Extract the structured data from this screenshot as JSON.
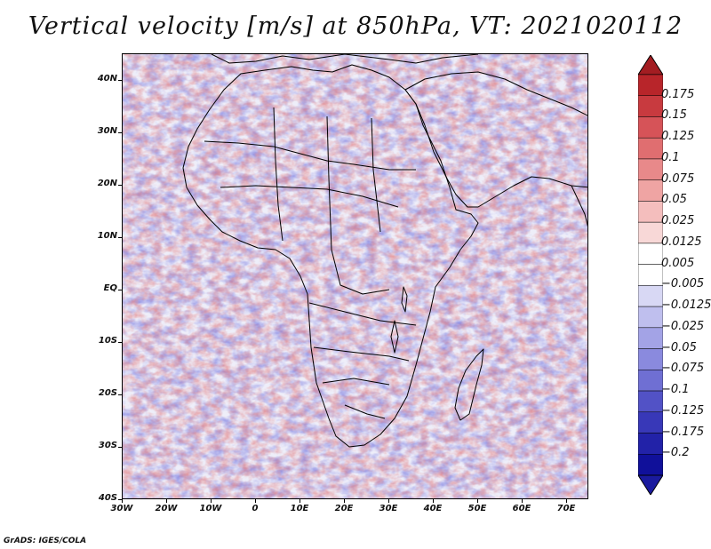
{
  "title": "Vertical velocity [m/s] at 850hPa, VT: 2021020112",
  "footer": "GrADS: IGES/COLA",
  "map": {
    "variable": "Vertical velocity",
    "units": "m/s",
    "level": "850hPa",
    "valid_time": "2021020112",
    "lon_range": [
      -30,
      75
    ],
    "lat_range": [
      -40,
      45
    ],
    "lat_labels": [
      "40N",
      "30N",
      "20N",
      "10N",
      "EQ",
      "10S",
      "20S",
      "30S",
      "40S"
    ],
    "lat_values": [
      40,
      30,
      20,
      10,
      0,
      -10,
      -20,
      -30,
      -40
    ],
    "lon_labels": [
      "30W",
      "20W",
      "10W",
      "0",
      "10E",
      "20E",
      "30E",
      "40E",
      "50E",
      "60E",
      "70E"
    ],
    "lon_values": [
      -30,
      -20,
      -10,
      0,
      10,
      20,
      30,
      40,
      50,
      60,
      70
    ]
  },
  "colorbar": {
    "labels": [
      "0.175",
      "0.15",
      "0.125",
      "0.1",
      "0.075",
      "0.05",
      "0.025",
      "0.0125",
      "0.005",
      "−0.005",
      "−0.0125",
      "−0.025",
      "−0.05",
      "−0.075",
      "−0.1",
      "−0.125",
      "−0.175",
      "−0.2"
    ],
    "colors": [
      "#b8252a",
      "#c83a3f",
      "#d65358",
      "#e06e70",
      "#e8898a",
      "#efa4a3",
      "#f4bebd",
      "#f8d8d7",
      "#ffffff",
      "#ffffff",
      "#d8d8f4",
      "#bfbfee",
      "#a3a3e6",
      "#8a8ade",
      "#6f6fd3",
      "#5252c6",
      "#3838b8",
      "#2222a8",
      "#10109a"
    ],
    "top_arrow_color": "#a31d22",
    "bottom_arrow_color": "#1a1a9e"
  }
}
